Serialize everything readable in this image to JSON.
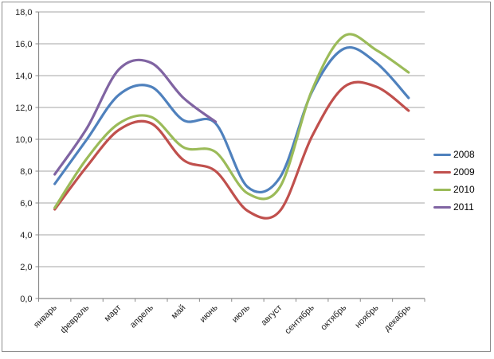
{
  "chart_data": {
    "type": "line",
    "title": "",
    "xlabel": "",
    "ylabel": "",
    "smooth": true,
    "grid": "horizontal",
    "legend_position": "right",
    "categories": [
      "январь",
      "февраль",
      "март",
      "апрель",
      "май",
      "июнь",
      "июль",
      "август",
      "сентябрь",
      "октябрь",
      "ноябрь",
      "декабрь"
    ],
    "series": [
      {
        "name": "2008",
        "color": "#4F81BD",
        "values": [
          7.2,
          10.0,
          12.8,
          13.3,
          11.2,
          11.0,
          7.0,
          7.6,
          13.0,
          15.7,
          14.8,
          12.6
        ]
      },
      {
        "name": "2009",
        "color": "#C0504D",
        "values": [
          5.6,
          8.3,
          10.6,
          11.0,
          8.7,
          8.0,
          5.5,
          5.5,
          10.2,
          13.3,
          13.3,
          11.8
        ]
      },
      {
        "name": "2010",
        "color": "#9BBB59",
        "values": [
          5.7,
          8.8,
          11.0,
          11.4,
          9.5,
          9.2,
          6.6,
          7.0,
          13.1,
          16.5,
          15.6,
          14.2
        ]
      },
      {
        "name": "2011",
        "color": "#8064A2",
        "values": [
          7.8,
          10.7,
          14.4,
          14.8,
          12.6,
          11.1,
          null,
          null,
          null,
          null,
          null,
          null
        ]
      }
    ],
    "ylim": [
      0,
      18
    ],
    "ytick_step": 2,
    "ytick_labels": [
      "0,0",
      "2,0",
      "4,0",
      "6,0",
      "8,0",
      "10,0",
      "12,0",
      "14,0",
      "16,0",
      "18,0"
    ]
  },
  "colors": {
    "gridline": "#a6a6a6",
    "axis": "#898989",
    "tick": "#898989",
    "label_text": "#1f1f1f",
    "frame_border": "#8c8c8c",
    "background": "#ffffff"
  }
}
